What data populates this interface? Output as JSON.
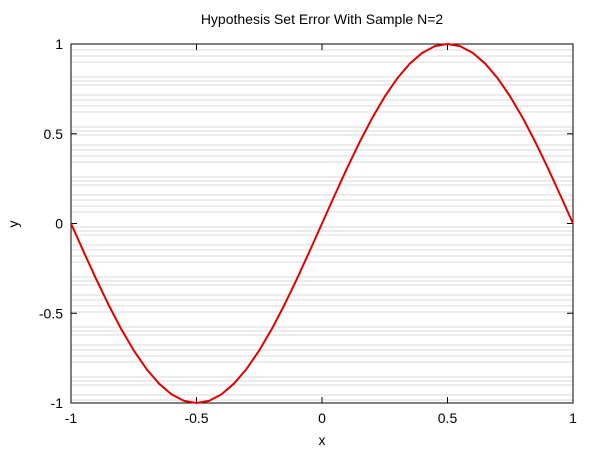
{
  "chart_data": {
    "type": "line",
    "title": "Hypothesis Set Error With Sample N=2",
    "xlabel": "x",
    "ylabel": "y",
    "xlim": [
      -1,
      1
    ],
    "ylim": [
      -1,
      1
    ],
    "xticks": [
      -1,
      -0.5,
      0,
      0.5,
      1
    ],
    "yticks": [
      -1,
      -0.5,
      0,
      0.5,
      1
    ],
    "xtick_labels": [
      "-1",
      "-0.5",
      "0",
      "0.5",
      "1"
    ],
    "ytick_labels": [
      "-1",
      "-0.5",
      "0",
      "0.5",
      "1"
    ],
    "grid": false,
    "series": [
      {
        "color": "#e00000",
        "style": "solid",
        "x": [
          -1,
          -0.95,
          -0.9,
          -0.85,
          -0.8,
          -0.75,
          -0.7,
          -0.65,
          -0.6,
          -0.55,
          -0.5,
          -0.45,
          -0.4,
          -0.35,
          -0.3,
          -0.25,
          -0.2,
          -0.15,
          -0.1,
          -0.05,
          0,
          0.05,
          0.1,
          0.15,
          0.2,
          0.25,
          0.3,
          0.35,
          0.4,
          0.45,
          0.5,
          0.55,
          0.6,
          0.65,
          0.7,
          0.75,
          0.8,
          0.85,
          0.9,
          0.95,
          1
        ],
        "y": [
          0,
          -0.156,
          -0.309,
          -0.454,
          -0.588,
          -0.707,
          -0.809,
          -0.891,
          -0.951,
          -0.988,
          -1,
          -0.988,
          -0.951,
          -0.891,
          -0.809,
          -0.707,
          -0.588,
          -0.454,
          -0.309,
          -0.156,
          0,
          0.156,
          0.309,
          0.454,
          0.588,
          0.707,
          0.809,
          0.891,
          0.951,
          0.988,
          1,
          0.988,
          0.951,
          0.891,
          0.809,
          0.707,
          0.588,
          0.454,
          0.309,
          0.156,
          0
        ]
      }
    ],
    "colors": {
      "background_lines": "#d9d9d9",
      "axis": "#000000"
    }
  }
}
